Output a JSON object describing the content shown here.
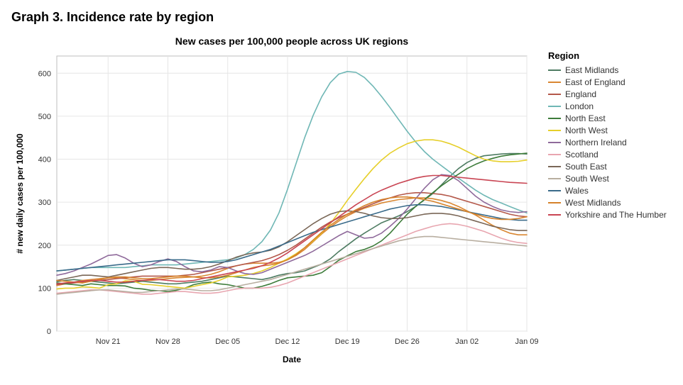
{
  "page_title": "Graph 3. Incidence rate by region",
  "chart": {
    "type": "line",
    "title": "New cases per 100,000 people across UK regions",
    "title_fontsize": 14,
    "title_fontweight": "bold",
    "xlabel": "Date",
    "ylabel": "# new daily cases per 100,000",
    "label_fontsize": 12,
    "tick_fontsize": 11,
    "background_color": "#ffffff",
    "plot_background_color": "#ffffff",
    "grid_color": "#e6e6e6",
    "axis_color": "#bdbdbd",
    "text_color": "#333333",
    "line_width": 1.6,
    "x_ticks": [
      "Nov 21",
      "Nov 28",
      "Dec 05",
      "Dec 12",
      "Dec 19",
      "Dec 26",
      "Jan 02",
      "Jan 09"
    ],
    "x_domain_index": [
      0,
      55
    ],
    "x_tick_index": [
      6,
      13,
      20,
      27,
      34,
      41,
      48,
      55
    ],
    "y_ticks": [
      0,
      100,
      200,
      300,
      400,
      500,
      600
    ],
    "ylim": [
      0,
      640
    ],
    "legend_title": "Region",
    "legend_fontsize": 12,
    "series": [
      {
        "name": "East Midlands",
        "color": "#4e7c62",
        "values": [
          115,
          118,
          120,
          118,
          116,
          114,
          112,
          110,
          112,
          114,
          116,
          114,
          112,
          110,
          110,
          112,
          114,
          116,
          120,
          124,
          128,
          126,
          124,
          122,
          120,
          124,
          130,
          134,
          136,
          140,
          148,
          156,
          168,
          185,
          200,
          215,
          228,
          240,
          252,
          260,
          268,
          278,
          290,
          305,
          320,
          340,
          360,
          378,
          392,
          402,
          408,
          410,
          412,
          413,
          413,
          412
        ]
      },
      {
        "name": "East of England",
        "color": "#d98732",
        "values": [
          106,
          110,
          114,
          118,
          120,
          122,
          124,
          124,
          122,
          120,
          118,
          118,
          120,
          122,
          124,
          125,
          126,
          128,
          132,
          138,
          146,
          152,
          156,
          158,
          158,
          158,
          160,
          166,
          176,
          190,
          208,
          226,
          242,
          256,
          268,
          278,
          286,
          292,
          298,
          302,
          306,
          308,
          310,
          310,
          308,
          304,
          298,
          290,
          280,
          270,
          258,
          246,
          236,
          228,
          224,
          224
        ]
      },
      {
        "name": "England",
        "color": "#b4584a",
        "values": [
          108,
          110,
          112,
          114,
          116,
          118,
          120,
          122,
          124,
          126,
          128,
          128,
          128,
          128,
          128,
          130,
          132,
          136,
          140,
          144,
          148,
          152,
          156,
          160,
          164,
          170,
          178,
          188,
          200,
          214,
          228,
          242,
          254,
          264,
          272,
          280,
          288,
          296,
          304,
          310,
          316,
          320,
          322,
          322,
          320,
          318,
          314,
          308,
          302,
          296,
          290,
          284,
          278,
          272,
          268,
          266
        ]
      },
      {
        "name": "London",
        "color": "#6fb7b5",
        "values": [
          140,
          142,
          144,
          146,
          148,
          148,
          148,
          148,
          148,
          150,
          152,
          154,
          154,
          154,
          154,
          156,
          158,
          160,
          162,
          164,
          166,
          170,
          178,
          190,
          208,
          235,
          275,
          330,
          390,
          450,
          502,
          545,
          578,
          598,
          604,
          602,
          590,
          570,
          546,
          520,
          492,
          465,
          440,
          418,
          400,
          385,
          370,
          356,
          342,
          328,
          316,
          306,
          298,
          290,
          282,
          275
        ]
      },
      {
        "name": "North East",
        "color": "#3d7c3a",
        "values": [
          112,
          110,
          108,
          106,
          110,
          108,
          106,
          106,
          105,
          100,
          98,
          95,
          94,
          92,
          95,
          100,
          108,
          112,
          114,
          110,
          108,
          104,
          100,
          100,
          104,
          110,
          118,
          124,
          126,
          128,
          130,
          136,
          150,
          165,
          175,
          185,
          190,
          198,
          210,
          228,
          250,
          272,
          290,
          306,
          322,
          338,
          352,
          365,
          378,
          388,
          396,
          402,
          407,
          410,
          412,
          414
        ]
      },
      {
        "name": "North West",
        "color": "#e6cf2a",
        "values": [
          98,
          100,
          100,
          103,
          102,
          100,
          108,
          110,
          117,
          116,
          109,
          108,
          106,
          104,
          102,
          100,
          104,
          108,
          112,
          118,
          126,
          128,
          130,
          134,
          140,
          148,
          158,
          168,
          180,
          194,
          210,
          228,
          250,
          276,
          304,
          330,
          355,
          378,
          398,
          414,
          426,
          436,
          442,
          445,
          445,
          442,
          436,
          428,
          418,
          408,
          400,
          396,
          394,
          394,
          395,
          398
        ]
      },
      {
        "name": "Northern Ireland",
        "color": "#8f6a9b",
        "values": [
          130,
          134,
          140,
          148,
          156,
          166,
          176,
          178,
          170,
          158,
          150,
          154,
          162,
          168,
          162,
          150,
          140,
          138,
          142,
          150,
          148,
          140,
          134,
          132,
          136,
          144,
          152,
          160,
          168,
          176,
          186,
          198,
          210,
          222,
          232,
          224,
          216,
          218,
          228,
          244,
          262,
          284,
          308,
          332,
          352,
          364,
          362,
          350,
          332,
          314,
          300,
          290,
          282,
          278,
          276,
          278
        ]
      },
      {
        "name": "Scotland",
        "color": "#e8a6b0",
        "values": [
          88,
          90,
          92,
          94,
          96,
          96,
          94,
          92,
          90,
          88,
          86,
          86,
          88,
          90,
          92,
          92,
          90,
          88,
          88,
          90,
          94,
          98,
          100,
          100,
          100,
          102,
          106,
          112,
          120,
          128,
          136,
          144,
          152,
          160,
          168,
          176,
          184,
          192,
          200,
          208,
          216,
          224,
          232,
          238,
          244,
          248,
          250,
          248,
          244,
          238,
          232,
          224,
          216,
          210,
          206,
          204
        ]
      },
      {
        "name": "South East",
        "color": "#7a6757",
        "values": [
          118,
          122,
          126,
          130,
          130,
          128,
          126,
          130,
          134,
          138,
          142,
          146,
          148,
          148,
          146,
          144,
          144,
          146,
          150,
          156,
          164,
          172,
          178,
          182,
          184,
          188,
          196,
          208,
          222,
          236,
          250,
          262,
          272,
          278,
          280,
          278,
          274,
          268,
          264,
          262,
          262,
          264,
          268,
          272,
          274,
          274,
          272,
          268,
          262,
          256,
          250,
          244,
          240,
          236,
          234,
          234
        ]
      },
      {
        "name": "South West",
        "color": "#b8aea0",
        "values": [
          86,
          88,
          90,
          92,
          94,
          96,
          96,
          94,
          92,
          90,
          90,
          92,
          94,
          96,
          98,
          98,
          96,
          94,
          94,
          96,
          100,
          104,
          108,
          112,
          116,
          120,
          126,
          132,
          138,
          144,
          150,
          156,
          162,
          168,
          174,
          180,
          186,
          192,
          198,
          204,
          210,
          214,
          218,
          220,
          220,
          218,
          216,
          214,
          212,
          210,
          208,
          206,
          204,
          202,
          200,
          198
        ]
      },
      {
        "name": "Wales",
        "color": "#3a6b8a",
        "values": [
          140,
          142,
          144,
          146,
          148,
          150,
          152,
          154,
          156,
          158,
          160,
          162,
          164,
          166,
          166,
          166,
          164,
          162,
          160,
          160,
          162,
          166,
          172,
          178,
          184,
          190,
          198,
          206,
          214,
          222,
          230,
          236,
          242,
          248,
          254,
          260,
          266,
          272,
          278,
          284,
          288,
          292,
          294,
          294,
          292,
          290,
          286,
          282,
          278,
          274,
          270,
          266,
          262,
          260,
          258,
          258
        ]
      },
      {
        "name": "West Midlands",
        "color": "#d6822a",
        "values": [
          118,
          116,
          114,
          112,
          116,
          120,
          124,
          126,
          126,
          124,
          122,
          122,
          124,
          126,
          128,
          128,
          126,
          124,
          124,
          126,
          130,
          136,
          142,
          148,
          152,
          154,
          158,
          166,
          178,
          194,
          212,
          230,
          246,
          260,
          272,
          282,
          292,
          300,
          306,
          310,
          312,
          312,
          310,
          306,
          302,
          296,
          290,
          284,
          278,
          272,
          266,
          262,
          260,
          260,
          262,
          266
        ]
      },
      {
        "name": "Yorkshire and The Humber",
        "color": "#c94553",
        "values": [
          110,
          112,
          114,
          116,
          118,
          118,
          116,
          114,
          114,
          116,
          118,
          120,
          120,
          118,
          116,
          116,
          118,
          122,
          126,
          130,
          134,
          138,
          142,
          146,
          152,
          160,
          170,
          182,
          196,
          210,
          224,
          238,
          252,
          266,
          280,
          294,
          306,
          318,
          328,
          336,
          344,
          350,
          356,
          360,
          362,
          362,
          360,
          358,
          356,
          354,
          352,
          350,
          348,
          346,
          345,
          344
        ]
      }
    ]
  }
}
